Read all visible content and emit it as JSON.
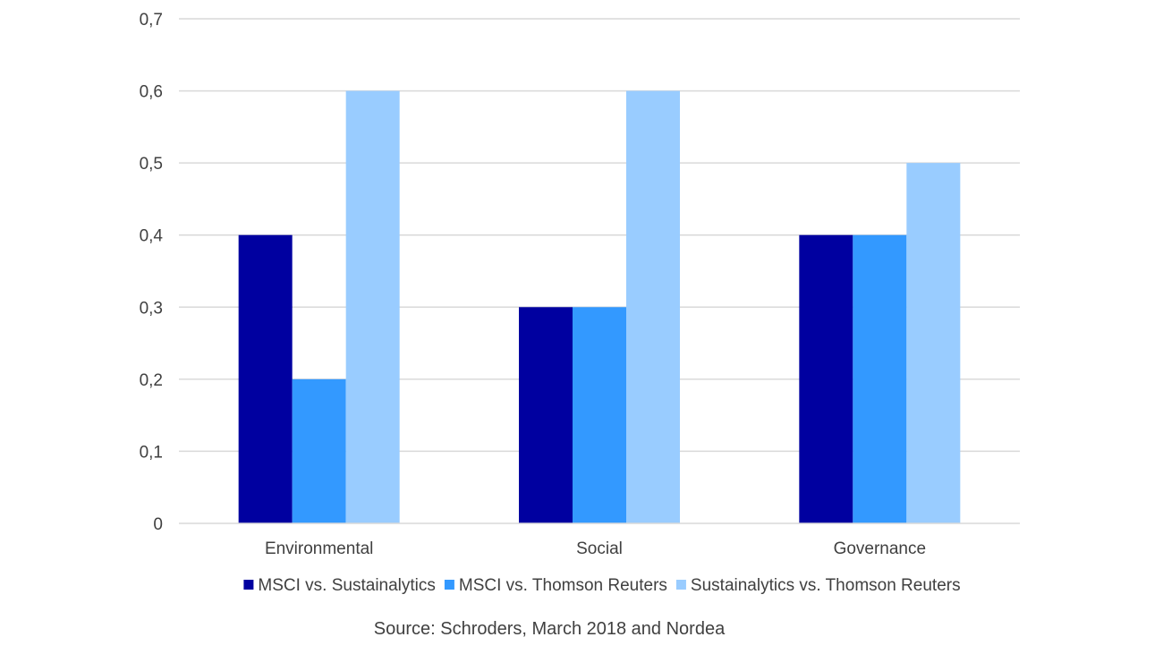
{
  "chart_data": {
    "type": "bar",
    "title": "",
    "xlabel": "",
    "ylabel": "",
    "categories": [
      "Environmental",
      "Social",
      "Governance"
    ],
    "series": [
      {
        "name": "MSCI vs. Sustainalytics",
        "values": [
          0.4,
          0.3,
          0.4
        ],
        "color": "#0000A0"
      },
      {
        "name": "MSCI vs. Thomson Reuters",
        "values": [
          0.2,
          0.3,
          0.4
        ],
        "color": "#3399FF"
      },
      {
        "name": "Sustainalytics vs. Thomson Reuters",
        "values": [
          0.6,
          0.6,
          0.5
        ],
        "color": "#99CCFF"
      }
    ],
    "ylim": [
      0,
      0.7
    ],
    "yticks": [
      0,
      0.1,
      0.2,
      0.3,
      0.4,
      0.5,
      0.6,
      0.7
    ],
    "ytick_labels": [
      "0",
      "0,1",
      "0,2",
      "0,3",
      "0,4",
      "0,5",
      "0,6",
      "0,7"
    ],
    "grid": true,
    "legend_position": "bottom"
  },
  "source": "Source: Schroders, March 2018 and Nordea"
}
